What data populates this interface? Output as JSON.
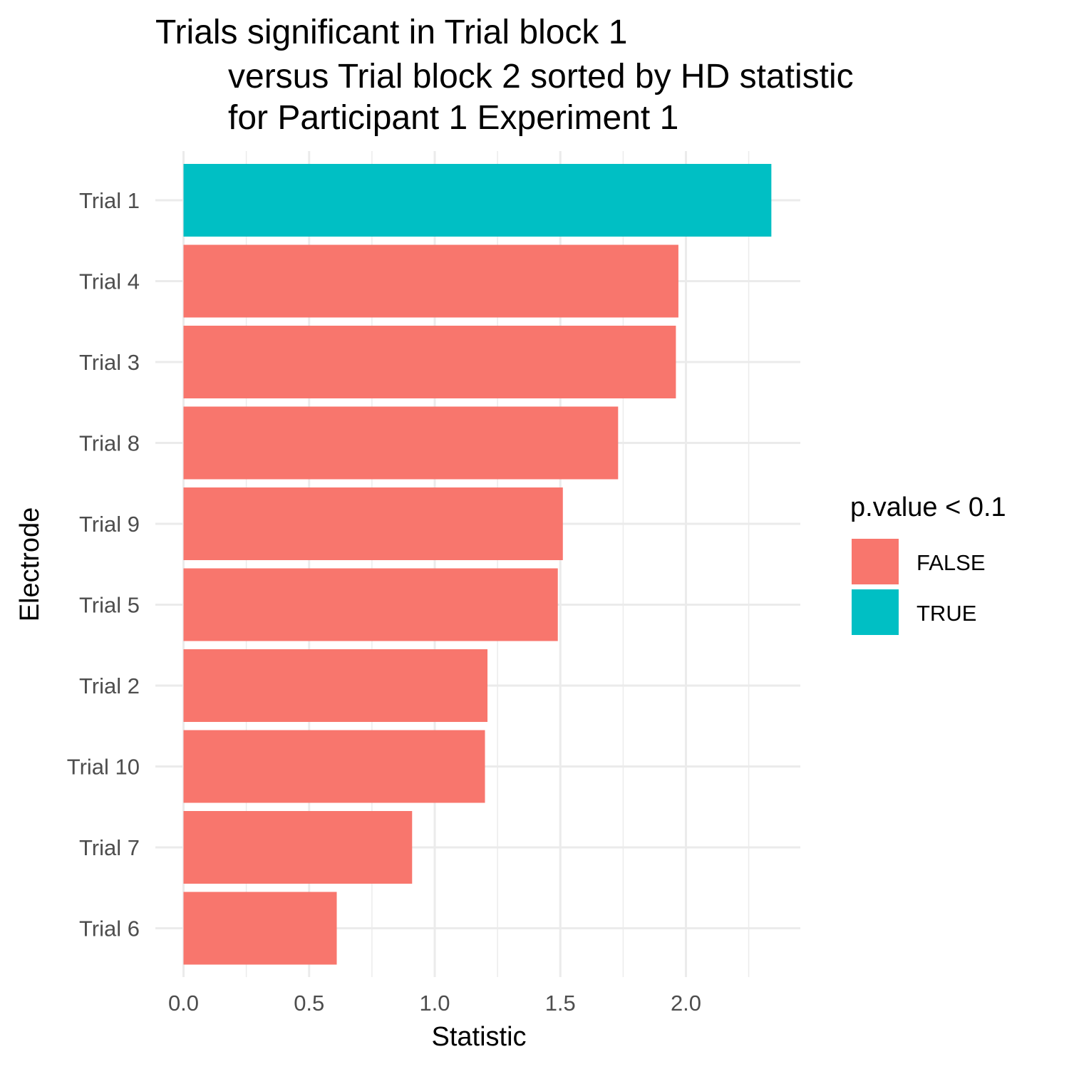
{
  "chart_data": {
    "type": "bar",
    "orientation": "horizontal",
    "title_lines": [
      "Trials significant in Trial block 1",
      "versus Trial block 2 sorted by HD statistic",
      "for Participant 1 Experiment 1"
    ],
    "xlabel": "Statistic",
    "ylabel": "Electrode",
    "xlim": [
      0,
      2.45
    ],
    "x_ticks": [
      "0.0",
      "0.5",
      "1.0",
      "1.5",
      "2.0"
    ],
    "categories": [
      "Trial 1",
      "Trial 4",
      "Trial 3",
      "Trial 8",
      "Trial 9",
      "Trial 5",
      "Trial 2",
      "Trial 10",
      "Trial 7",
      "Trial 6"
    ],
    "values": [
      2.34,
      1.97,
      1.96,
      1.73,
      1.51,
      1.49,
      1.21,
      1.2,
      0.91,
      0.61
    ],
    "significant": [
      true,
      false,
      false,
      false,
      false,
      false,
      false,
      false,
      false,
      false
    ],
    "grid": true,
    "legend": {
      "title": "p.value < 0.1",
      "position": "right",
      "entries": [
        {
          "label": "FALSE",
          "color": "#F8766D"
        },
        {
          "label": "TRUE",
          "color": "#00BFC4"
        }
      ]
    },
    "colors": {
      "false": "#F8766D",
      "true": "#00BFC4",
      "grid": "#ebebeb",
      "tick_text": "#4d4d4d"
    }
  }
}
